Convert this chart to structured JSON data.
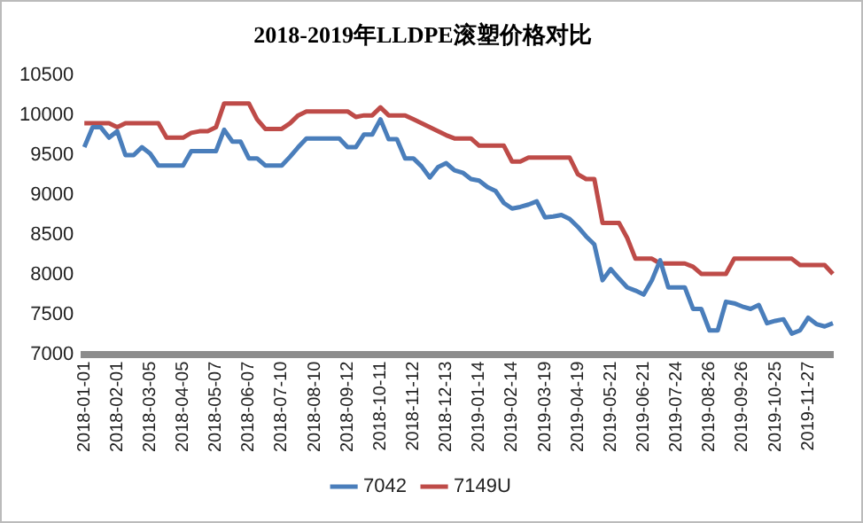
{
  "chart_data": {
    "type": "line",
    "title": "2018-2019年LLDPE滚塑价格对比",
    "categories": [
      "2018-01-01",
      null,
      null,
      null,
      "2018-02-01",
      null,
      null,
      null,
      "2018-03-05",
      null,
      null,
      null,
      "2018-04-05",
      null,
      null,
      null,
      "2018-05-07",
      null,
      null,
      null,
      "2018-06-07",
      null,
      null,
      null,
      "2018-07-10",
      null,
      null,
      null,
      "2018-08-10",
      null,
      null,
      null,
      "2018-09-12",
      null,
      null,
      null,
      "2018-10-11",
      null,
      null,
      null,
      "2018-11-12",
      null,
      null,
      null,
      "2018-12-13",
      null,
      null,
      null,
      "2019-01-14",
      null,
      null,
      null,
      "2019-02-14",
      null,
      null,
      null,
      "2019-03-19",
      null,
      null,
      null,
      "2019-04-19",
      null,
      null,
      null,
      "2019-05-21",
      null,
      null,
      null,
      "2019-06-21",
      null,
      null,
      null,
      "2019-07-24",
      null,
      null,
      null,
      "2019-08-26",
      null,
      null,
      null,
      "2019-09-26",
      null,
      null,
      null,
      "2019-10-25",
      null,
      null,
      null,
      "2019-11-27",
      null,
      null,
      null
    ],
    "series": [
      {
        "name": "7042",
        "color": "#4a7ebb",
        "values": [
          9600,
          9850,
          9850,
          9720,
          9800,
          9500,
          9500,
          9600,
          9520,
          9370,
          9370,
          9370,
          9370,
          9550,
          9550,
          9550,
          9550,
          9820,
          9670,
          9670,
          9460,
          9460,
          9370,
          9370,
          9370,
          9480,
          9600,
          9710,
          9710,
          9710,
          9710,
          9710,
          9600,
          9600,
          9760,
          9760,
          9950,
          9700,
          9700,
          9460,
          9460,
          9360,
          9220,
          9350,
          9400,
          9310,
          9280,
          9200,
          9180,
          9100,
          9050,
          8900,
          8830,
          8850,
          8880,
          8920,
          8720,
          8730,
          8750,
          8700,
          8600,
          8480,
          8380,
          7930,
          8070,
          7950,
          7840,
          7800,
          7750,
          7930,
          8180,
          7840,
          7840,
          7840,
          7570,
          7570,
          7300,
          7300,
          7660,
          7640,
          7600,
          7570,
          7620,
          7390,
          7420,
          7440,
          7260,
          7300,
          7460,
          7380,
          7350,
          7390
        ]
      },
      {
        "name": "7149U",
        "color": "#be4b48",
        "values": [
          9900,
          9900,
          9900,
          9900,
          9850,
          9900,
          9900,
          9900,
          9900,
          9900,
          9720,
          9720,
          9720,
          9780,
          9800,
          9800,
          9850,
          10150,
          10150,
          10150,
          10150,
          9950,
          9830,
          9830,
          9830,
          9900,
          10000,
          10050,
          10050,
          10050,
          10050,
          10050,
          10050,
          9980,
          10000,
          10000,
          10100,
          10000,
          10000,
          10000,
          9950,
          9900,
          9850,
          9800,
          9750,
          9710,
          9710,
          9710,
          9620,
          9620,
          9620,
          9620,
          9420,
          9420,
          9470,
          9470,
          9470,
          9470,
          9470,
          9470,
          9260,
          9200,
          9200,
          8650,
          8650,
          8650,
          8460,
          8200,
          8200,
          8200,
          8140,
          8140,
          8140,
          8140,
          8100,
          8010,
          8010,
          8010,
          8010,
          8200,
          8200,
          8200,
          8200,
          8200,
          8200,
          8200,
          8200,
          8120,
          8120,
          8120,
          8120,
          8010
        ]
      }
    ],
    "ylim": [
      7000,
      10500
    ],
    "yticks": [
      7000,
      7500,
      8000,
      8500,
      9000,
      9500,
      10000,
      10500
    ],
    "legend": "bottom",
    "marker": "none",
    "line_style": "solid"
  }
}
